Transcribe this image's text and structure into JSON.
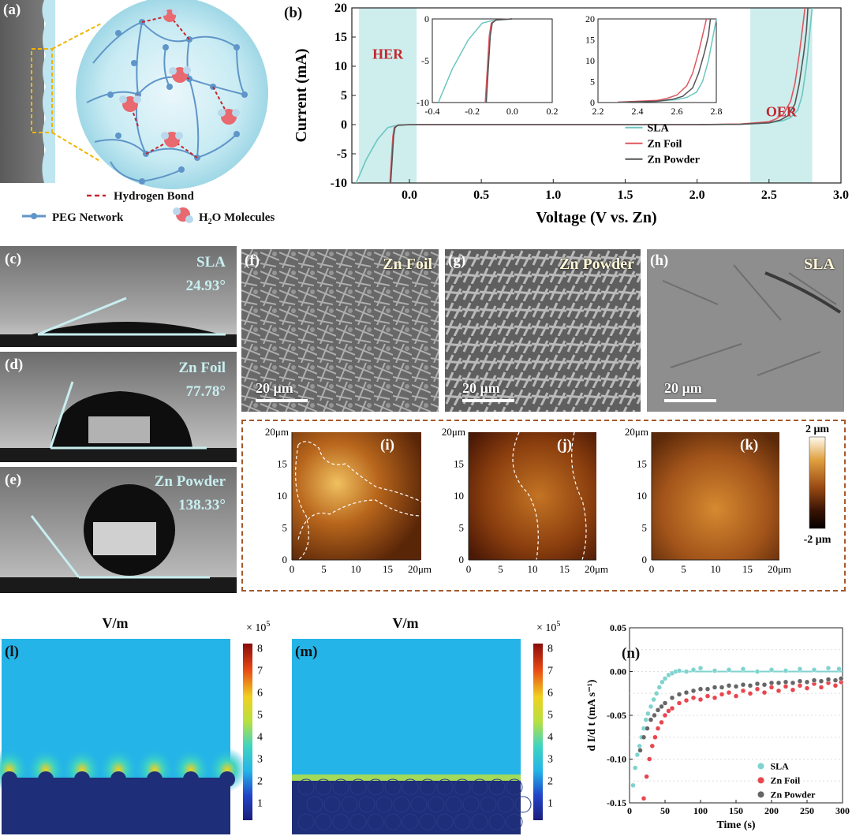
{
  "labels": {
    "a": "(a)",
    "b": "(b)",
    "c": "(c)",
    "d": "(d)",
    "e": "(e)",
    "f": "(f)",
    "g": "(g)",
    "h": "(h)",
    "i": "(i)",
    "j": "(j)",
    "k": "(k)",
    "l": "(l)",
    "m": "(m)",
    "n": "(n)"
  },
  "panel_a": {
    "legend_hbond": "Hydrogen Bond",
    "legend_peg": "PEG Network",
    "legend_h2o_prefix": "H",
    "legend_h2o_sub": "2",
    "legend_h2o_suffix": "O Molecules"
  },
  "contact_angle": [
    {
      "name": "SLA",
      "angle": "24.93°"
    },
    {
      "name": "Zn Foil",
      "angle": "77.78°"
    },
    {
      "name": "Zn Powder",
      "angle": "138.33°"
    }
  ],
  "sem": [
    {
      "name": "Zn Foil",
      "scale": "20 μm"
    },
    {
      "name": "Zn Powder",
      "scale": "20 μm"
    },
    {
      "name": "SLA",
      "scale": "20 μm"
    }
  ],
  "afm": {
    "colorbar_top": "2 μm",
    "colorbar_bottom": "-2 μm",
    "y_top_label": "20μm",
    "x_end_label": "20μm",
    "ticks": [
      "0",
      "5",
      "10",
      "15"
    ]
  },
  "field_maps": {
    "title": "V/m",
    "exponent_prefix": "× 10",
    "exponent_power": "5",
    "colorbar_ticks": [
      "1",
      "2",
      "3",
      "4",
      "5",
      "6",
      "7",
      "8"
    ]
  },
  "chart_data": [
    {
      "type": "line",
      "panel": "b",
      "xlabel": "Voltage (V vs. Zn)",
      "ylabel": "Current (mA)",
      "xlim": [
        -0.4,
        3.0
      ],
      "ylim": [
        -10,
        20
      ],
      "xticks": [
        "0.0",
        "0.5",
        "1.0",
        "1.5",
        "2.0",
        "2.5",
        "3.0"
      ],
      "yticks": [
        "-10",
        "-5",
        "0",
        "5",
        "10",
        "15",
        "20"
      ],
      "regions": [
        {
          "label": "HER",
          "x": [
            -0.35,
            0.05
          ]
        },
        {
          "label": "OER",
          "x": [
            2.37,
            2.8
          ]
        }
      ],
      "series": [
        {
          "name": "SLA",
          "color": "#6cc6c0",
          "x": [
            -0.37,
            -0.3,
            -0.22,
            -0.15,
            -0.1,
            0.0,
            0.5,
            1.0,
            1.5,
            2.0,
            2.3,
            2.5,
            2.6,
            2.65,
            2.7,
            2.73,
            2.76,
            2.78,
            2.8
          ],
          "y": [
            -10,
            -6,
            -2.5,
            -0.5,
            -0.2,
            0,
            0,
            0,
            0,
            0,
            0.05,
            0.3,
            0.7,
            1.2,
            2.5,
            5,
            10,
            15,
            20
          ]
        },
        {
          "name": "Zn Foil",
          "color": "#e05560",
          "x": [
            -0.135,
            -0.125,
            -0.115,
            -0.105,
            -0.08,
            0.0,
            0.5,
            1.0,
            1.5,
            2.0,
            2.3,
            2.5,
            2.55,
            2.6,
            2.65,
            2.68,
            2.71,
            2.73,
            2.75
          ],
          "y": [
            -10,
            -6,
            -2,
            -0.5,
            -0.1,
            0,
            0,
            0,
            0,
            0,
            0.1,
            0.5,
            1,
            1.8,
            4,
            7,
            12,
            16,
            20
          ]
        },
        {
          "name": "Zn Powder",
          "color": "#555555",
          "x": [
            -0.13,
            -0.12,
            -0.11,
            -0.1,
            -0.08,
            0.0,
            0.5,
            1.0,
            1.5,
            2.0,
            2.3,
            2.5,
            2.58,
            2.63,
            2.68,
            2.71,
            2.74,
            2.76,
            2.77
          ],
          "y": [
            -10,
            -6,
            -2,
            -0.5,
            -0.1,
            0,
            0,
            0,
            0,
            0,
            0.05,
            0.3,
            0.8,
            1.5,
            3.5,
            7,
            12,
            16,
            20
          ]
        }
      ],
      "insets": [
        {
          "xlim": [
            -0.4,
            0.2
          ],
          "ylim": [
            -10,
            0
          ],
          "xticks": [
            "-0.4",
            "-0.2",
            "0.0",
            "0.2"
          ],
          "yticks": [
            "-10",
            "-5",
            "0"
          ]
        },
        {
          "xlim": [
            2.2,
            2.8
          ],
          "ylim": [
            0,
            20
          ],
          "xticks": [
            "2.2",
            "2.4",
            "2.6",
            "2.8"
          ],
          "yticks": [
            "0",
            "5",
            "10",
            "15",
            "20"
          ]
        }
      ]
    },
    {
      "type": "scatter",
      "panel": "n",
      "xlabel": "Time (s)",
      "ylabel": "d I/d t (mA s⁻¹)",
      "xlim": [
        0,
        300
      ],
      "ylim": [
        -0.15,
        0.05
      ],
      "xticks": [
        "0",
        "50",
        "100",
        "150",
        "200",
        "250",
        "300"
      ],
      "yticks": [
        "0.05",
        "0.00",
        "-0.05",
        "-0.10",
        "-0.15"
      ],
      "legend_position": "bottom-right",
      "series": [
        {
          "name": "SLA",
          "color": "#7fd3cf",
          "x": [
            5,
            8,
            11,
            14,
            17,
            20,
            23,
            26,
            30,
            34,
            38,
            42,
            46,
            50,
            55,
            60,
            65,
            70,
            80,
            90,
            100,
            120,
            140,
            160,
            180,
            200,
            220,
            240,
            260,
            280,
            295
          ],
          "y": [
            -0.13,
            -0.11,
            -0.095,
            -0.085,
            -0.075,
            -0.065,
            -0.055,
            -0.048,
            -0.04,
            -0.032,
            -0.025,
            -0.018,
            -0.012,
            -0.008,
            -0.004,
            -0.002,
            0.0,
            0.001,
            0.0,
            0.002,
            0.004,
            0.001,
            0.002,
            0.003,
            0.0,
            0.002,
            0.001,
            0.003,
            0.002,
            0.004,
            0.003
          ]
        },
        {
          "name": "Zn Foil",
          "color": "#e8464f",
          "x": [
            20,
            24,
            28,
            32,
            36,
            40,
            45,
            50,
            55,
            60,
            70,
            80,
            90,
            100,
            110,
            120,
            130,
            140,
            150,
            160,
            170,
            180,
            190,
            200,
            210,
            220,
            230,
            240,
            250,
            260,
            270,
            280,
            290,
            298
          ],
          "y": [
            -0.145,
            -0.12,
            -0.1,
            -0.085,
            -0.075,
            -0.065,
            -0.058,
            -0.05,
            -0.045,
            -0.042,
            -0.036,
            -0.033,
            -0.03,
            -0.032,
            -0.028,
            -0.03,
            -0.026,
            -0.024,
            -0.028,
            -0.022,
            -0.025,
            -0.02,
            -0.024,
            -0.018,
            -0.022,
            -0.017,
            -0.021,
            -0.016,
            -0.019,
            -0.014,
            -0.018,
            -0.013,
            -0.016,
            -0.012
          ]
        },
        {
          "name": "Zn Powder",
          "color": "#666666",
          "x": [
            15,
            20,
            25,
            30,
            35,
            40,
            45,
            50,
            60,
            70,
            80,
            90,
            100,
            110,
            120,
            130,
            140,
            150,
            160,
            170,
            180,
            190,
            200,
            210,
            220,
            230,
            240,
            250,
            260,
            270,
            280,
            290,
            298
          ],
          "y": [
            -0.09,
            -0.075,
            -0.065,
            -0.055,
            -0.05,
            -0.044,
            -0.04,
            -0.036,
            -0.03,
            -0.026,
            -0.024,
            -0.022,
            -0.02,
            -0.02,
            -0.018,
            -0.018,
            -0.016,
            -0.017,
            -0.015,
            -0.016,
            -0.014,
            -0.015,
            -0.013,
            -0.013,
            -0.012,
            -0.013,
            -0.011,
            -0.012,
            -0.01,
            -0.011,
            -0.009,
            -0.01,
            -0.008
          ]
        }
      ]
    }
  ]
}
